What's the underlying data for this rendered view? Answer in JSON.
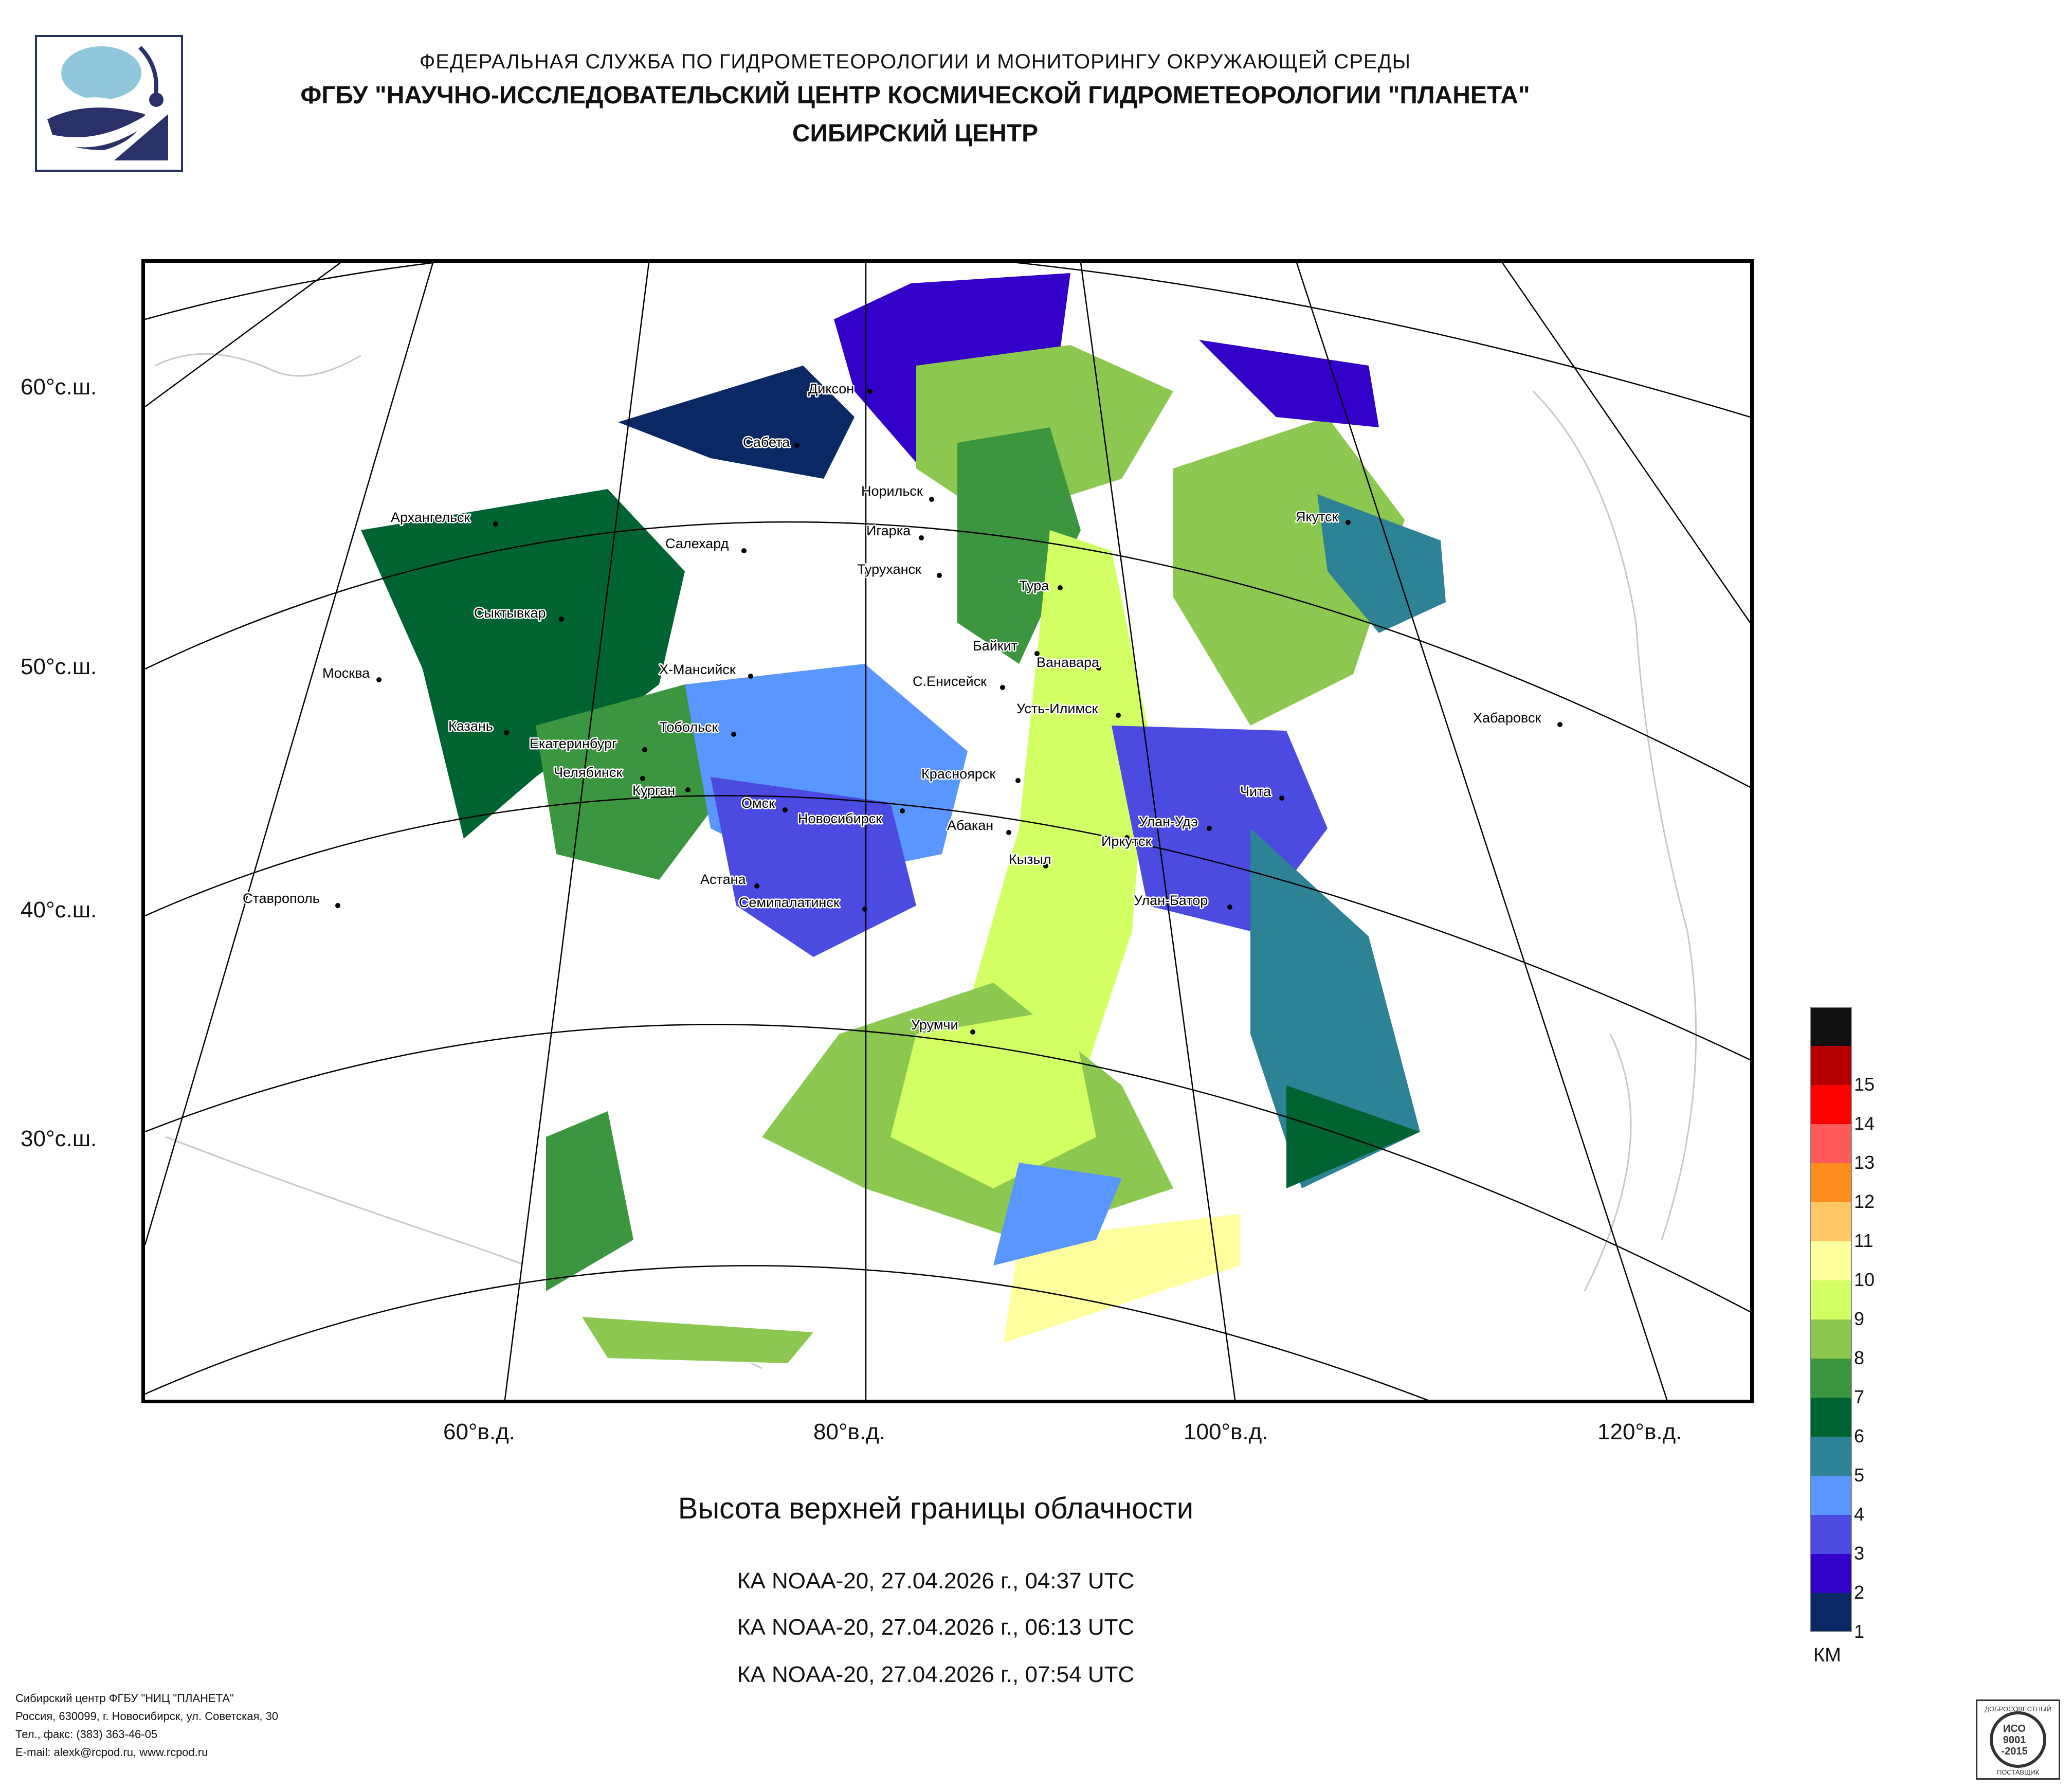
{
  "header": {
    "line1": "ФЕДЕРАЛЬНАЯ СЛУЖБА ПО ГИДРОМЕТЕОРОЛОГИИ И МОНИТОРИНГУ ОКРУЖАЮЩЕЙ СРЕДЫ",
    "line2": "ФГБУ \"НАУЧНО-ИССЛЕДОВАТЕЛЬСКИЙ ЦЕНТР КОСМИЧЕСКОЙ ГИДРОМЕТЕОРОЛОГИИ \"ПЛАНЕТА\"",
    "line3": "СИБИРСКИЙ ЦЕНТР"
  },
  "colors": {
    "logo_navy": "#2a3068",
    "logo_sky": "#8fc8dc",
    "frame": "#000000"
  },
  "map": {
    "lat_labels": [
      "60°с.ш.",
      "50°с.ш.",
      "40°с.ш.",
      "30°с.ш."
    ],
    "lon_labels": [
      "60°в.д.",
      "80°в.д.",
      "100°в.д.",
      "120°в.д."
    ],
    "cities": [
      "Диксон",
      "Сабета",
      "Норильск",
      "Архангельск",
      "Салехард",
      "Игарка",
      "Туруханск",
      "Якутск",
      "Тура",
      "Сыктывкар",
      "Байкит",
      "Ванавара",
      "Москва",
      "Х-Мансийск",
      "С.Енисейск",
      "Усть-Илимск",
      "Хабаровск",
      "Казань",
      "Тобольск",
      "Екатеринбург",
      "Челябинск",
      "Курган",
      "Красноярск",
      "Чита",
      "Омск",
      "Новосибирск",
      "Абакан",
      "Улан-Удэ",
      "Иркутск",
      "Кызыл",
      "Астана",
      "Ставрополь",
      "Семипалатинск",
      "Улан-Батор",
      "Урумчи"
    ]
  },
  "title": "Высота верхней границы облачности",
  "passes": [
    "КА NOAA-20, 27.04.2026 г., 04:37 UTC",
    "КА NOAA-20, 27.04.2026 г., 06:13 UTC",
    "КА NOAA-20, 27.04.2026 г., 07:54 UTC"
  ],
  "legend": {
    "unit": "КМ",
    "levels": [
      {
        "label": "",
        "color": "#111111"
      },
      {
        "label": "15",
        "color": "#b40000"
      },
      {
        "label": "14",
        "color": "#ff0000"
      },
      {
        "label": "13",
        "color": "#ff5a5a"
      },
      {
        "label": "12",
        "color": "#ff8c1e"
      },
      {
        "label": "11",
        "color": "#ffc864"
      },
      {
        "label": "10",
        "color": "#ffff9e"
      },
      {
        "label": "9",
        "color": "#d2ff64"
      },
      {
        "label": "8",
        "color": "#8cc850"
      },
      {
        "label": "7",
        "color": "#3c9640"
      },
      {
        "label": "6",
        "color": "#006432"
      },
      {
        "label": "5",
        "color": "#2d8296"
      },
      {
        "label": "4",
        "color": "#5a96ff"
      },
      {
        "label": "3",
        "color": "#4b4be1"
      },
      {
        "label": "2",
        "color": "#3200c8"
      },
      {
        "label": "1",
        "color": "#0a2864"
      }
    ]
  },
  "footer": [
    "Сибирский центр ФГБУ \"НИЦ \"ПЛАНЕТА\"",
    "Россия, 630099, г. Новосибирск, ул. Советская, 30",
    "Тел., факс: (383) 363-46-05",
    "E-mail: alexk@rcpod.ru, www.rcpod.ru"
  ],
  "certificate": {
    "top": "ДОБРОСОВЕСТНЫЙ",
    "mark1": "ИСО",
    "mark2": "9001",
    "mark3": "-2015",
    "bottom": "ПОСТАВЩИК"
  }
}
